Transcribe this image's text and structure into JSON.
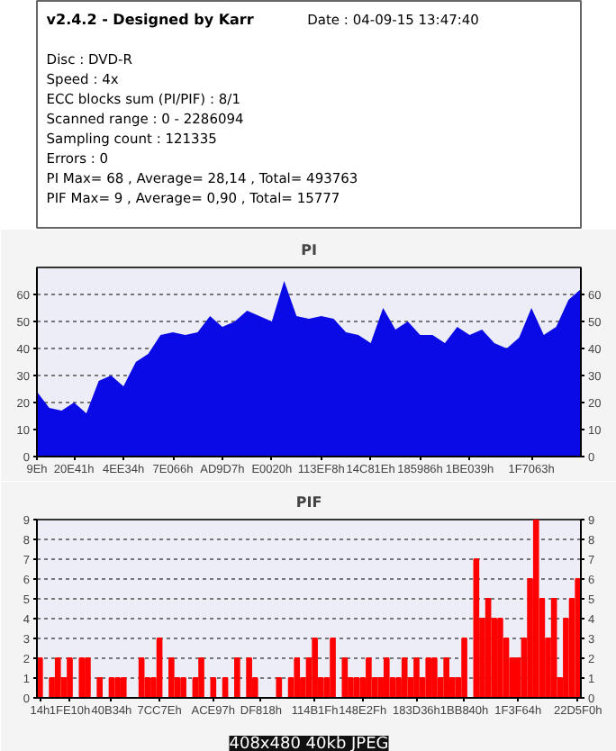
{
  "chart_data": [
    {
      "type": "other",
      "title": "v2.4.2 - Designed by Karr",
      "annotations": [
        "Date : 04-09-15 13:47:40",
        "Disc : DVD-R",
        "Speed : 4x",
        "ECC blocks sum (PI/PIF) : 8/1",
        "Scanned range : 0 - 2286094",
        "Sampling count : 121335",
        "Errors : 0",
        "PI Max= 68 , Average= 28,14 , Total= 493763",
        "PIF Max= 9 , Average= 0,90 , Total= 15777"
      ]
    },
    {
      "type": "area",
      "title": "PI",
      "ylim": [
        0,
        70
      ],
      "yticks": [
        0,
        10,
        20,
        30,
        40,
        50,
        60
      ],
      "y2lim": [
        0,
        70
      ],
      "y2ticks": [
        0,
        10,
        20,
        30,
        40,
        50,
        60
      ],
      "grid": "y",
      "categories": [
        "9Eh",
        null,
        null,
        "20E41h",
        null,
        null,
        null,
        "4EE34h",
        null,
        null,
        null,
        "7E066h",
        null,
        null,
        null,
        "AD9D7h",
        null,
        null,
        null,
        "E0020h",
        null,
        null,
        null,
        "113EF8h",
        null,
        null,
        null,
        "14C81Eh",
        null,
        null,
        null,
        "185986h",
        null,
        null,
        null,
        "1BE039h",
        null,
        null,
        null,
        null,
        "1F7063h",
        null,
        null,
        null,
        null
      ],
      "series": [
        {
          "color": "#0a0ae6",
          "values": [
            24,
            18,
            17,
            20,
            16,
            28,
            30,
            26,
            35,
            38,
            45,
            46,
            45,
            46,
            52,
            48,
            50,
            54,
            52,
            50,
            65,
            52,
            51,
            52,
            51,
            46,
            45,
            42,
            55,
            47,
            50,
            45,
            45,
            42,
            48,
            45,
            47,
            42,
            40,
            44,
            55,
            45,
            48,
            58,
            62
          ]
        }
      ]
    },
    {
      "type": "bar",
      "title": "PIF",
      "ylim": [
        0,
        9
      ],
      "yticks": [
        0,
        1,
        2,
        3,
        4,
        5,
        6,
        7,
        8,
        9
      ],
      "y2lim": [
        0,
        9
      ],
      "y2ticks": [
        0,
        1,
        2,
        3,
        4,
        5,
        6,
        7,
        8,
        9
      ],
      "grid": "y",
      "annotations": [
        "408x480 40kb JPEG"
      ],
      "categories": [
        "14h",
        null,
        null,
        null,
        null,
        "1FE10h",
        null,
        null,
        null,
        null,
        null,
        null,
        "40B34h",
        null,
        null,
        null,
        null,
        null,
        null,
        null,
        "7CC7Eh",
        null,
        null,
        null,
        null,
        null,
        null,
        null,
        null,
        "ACE97h",
        null,
        null,
        null,
        null,
        null,
        null,
        null,
        "DF818h",
        null,
        null,
        null,
        null,
        null,
        null,
        null,
        null,
        "114B1Fh",
        null,
        null,
        null,
        null,
        null,
        null,
        null,
        "148E2Fh",
        null,
        null,
        null,
        null,
        null,
        null,
        null,
        null,
        "183D36h",
        null,
        null,
        null,
        null,
        null,
        null,
        null,
        "1BB840h",
        null,
        null,
        null,
        null,
        null,
        null,
        null,
        null,
        "1F3F64h",
        null,
        null,
        null,
        null,
        null,
        null,
        null,
        null,
        null,
        "22D5F0h"
      ],
      "series": [
        {
          "color": "#ff0000",
          "values": [
            2,
            0,
            1,
            2,
            1,
            2,
            0,
            2,
            2,
            0,
            1,
            0,
            1,
            1,
            1,
            0,
            0,
            2,
            1,
            1,
            3,
            0,
            2,
            1,
            1,
            0,
            1,
            2,
            0,
            1,
            0,
            1,
            0,
            2,
            0,
            2,
            1,
            0,
            0,
            0,
            1,
            0,
            1,
            2,
            1,
            2,
            3,
            1,
            1,
            3,
            0,
            2,
            1,
            1,
            1,
            2,
            1,
            1,
            2,
            1,
            1,
            2,
            1,
            2,
            1,
            2,
            2,
            1,
            2,
            1,
            1,
            3,
            0,
            7,
            4,
            5,
            4,
            4,
            3,
            2,
            2,
            3,
            6,
            9,
            5,
            3,
            5,
            1,
            4,
            5,
            6
          ]
        }
      ]
    }
  ]
}
